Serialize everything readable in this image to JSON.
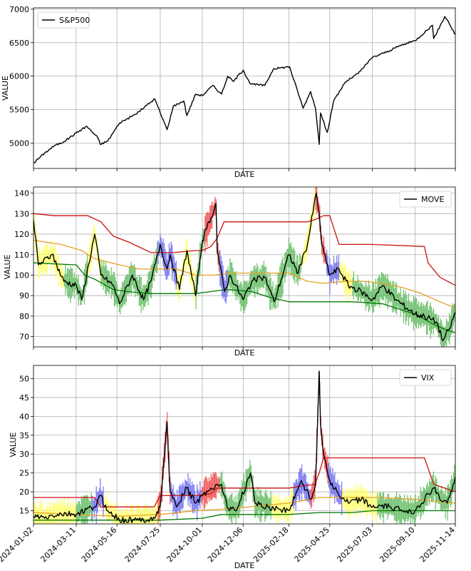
{
  "chart_data": [
    {
      "type": "line",
      "xlabel": "DATE",
      "ylabel": "VALUE",
      "ylim": [
        4620,
        7020
      ],
      "yticks": [
        5000,
        5500,
        6000,
        6500,
        7000
      ],
      "grid": true,
      "legend": {
        "position": "top-left",
        "entries": [
          {
            "label": "S&P500",
            "color": "#000000"
          }
        ]
      },
      "series": [
        {
          "name": "S&P500",
          "color": "#000000",
          "x": [
            "2024-01-02",
            "2024-01-20",
            "2024-02-05",
            "2024-02-20",
            "2024-03-11",
            "2024-03-28",
            "2024-04-15",
            "2024-04-19",
            "2024-05-01",
            "2024-05-20",
            "2024-06-15",
            "2024-07-16",
            "2024-07-25",
            "2024-08-05",
            "2024-08-15",
            "2024-09-01",
            "2024-09-06",
            "2024-09-20",
            "2024-10-01",
            "2024-10-18",
            "2024-11-01",
            "2024-11-11",
            "2024-11-20",
            "2024-12-06",
            "2024-12-18",
            "2025-01-10",
            "2025-01-24",
            "2025-02-19",
            "2025-03-13",
            "2025-03-25",
            "2025-04-02",
            "2025-04-08",
            "2025-04-10",
            "2025-04-21",
            "2025-05-01",
            "2025-05-20",
            "2025-06-10",
            "2025-07-03",
            "2025-07-31",
            "2025-08-15",
            "2025-09-10",
            "2025-10-08",
            "2025-10-10",
            "2025-10-28",
            "2025-11-01",
            "2025-11-14"
          ],
          "values": [
            4700,
            4850,
            4960,
            5020,
            5150,
            5250,
            5080,
            4980,
            5030,
            5300,
            5430,
            5660,
            5450,
            5200,
            5550,
            5630,
            5410,
            5730,
            5710,
            5860,
            5730,
            6000,
            5920,
            6090,
            5880,
            5860,
            6110,
            6140,
            5520,
            5770,
            5520,
            4980,
            5450,
            5160,
            5620,
            5910,
            6040,
            6280,
            6380,
            6450,
            6530,
            6760,
            6560,
            6890,
            6840,
            6620
          ]
        }
      ]
    },
    {
      "type": "line",
      "xlabel": "DATE",
      "ylabel": "VALUE",
      "ylim": [
        65,
        143
      ],
      "yticks": [
        70,
        80,
        90,
        100,
        110,
        120,
        130,
        140
      ],
      "grid": true,
      "legend": {
        "position": "top-right",
        "entries": [
          {
            "label": "MOVE",
            "color": "#000000"
          }
        ]
      },
      "series": [
        {
          "color": "#000000",
          "x": [
            "2024-01-02",
            "2024-01-10",
            "2024-02-01",
            "2024-02-20",
            "2024-03-11",
            "2024-03-20",
            "2024-04-10",
            "2024-04-20",
            "2024-05-10",
            "2024-05-20",
            "2024-06-10",
            "2024-06-28",
            "2024-07-10",
            "2024-07-25",
            "2024-08-05",
            "2024-08-10",
            "2024-08-25",
            "2024-09-06",
            "2024-09-20",
            "2024-10-01",
            "2024-10-15",
            "2024-10-23",
            "2024-10-25",
            "2024-11-06",
            "2024-11-15",
            "2024-12-06",
            "2024-12-20",
            "2025-01-10",
            "2025-01-25",
            "2025-02-18",
            "2025-03-05",
            "2025-03-20",
            "2025-04-03",
            "2025-04-08",
            "2025-04-12",
            "2025-04-25",
            "2025-05-10",
            "2025-05-25",
            "2025-06-15",
            "2025-07-03",
            "2025-07-20",
            "2025-08-10",
            "2025-09-10",
            "2025-09-25",
            "2025-10-15",
            "2025-10-25",
            "2025-11-05",
            "2025-11-14"
          ],
          "values": [
            127,
            105,
            110,
            97,
            95,
            88,
            120,
            100,
            95,
            86,
            100,
            88,
            97,
            115,
            103,
            110,
            93,
            112,
            90,
            117,
            128,
            135,
            112,
            92,
            100,
            88,
            97,
            99,
            87,
            110,
            101,
            115,
            140,
            130,
            115,
            100,
            103,
            95,
            92,
            88,
            95,
            88,
            81,
            80,
            77,
            68,
            74,
            82
          ]
        },
        {
          "color": "#cc1111",
          "x": [
            "2024-01-02",
            "2024-02-05",
            "2024-03-30",
            "2024-04-20",
            "2024-05-10",
            "2024-06-05",
            "2024-07-10",
            "2024-07-25",
            "2024-08-15",
            "2024-09-20",
            "2024-10-01",
            "2024-10-15",
            "2024-10-25",
            "2024-11-05",
            "2025-02-18",
            "2025-03-20",
            "2025-04-01",
            "2025-04-15",
            "2025-04-25",
            "2025-05-10",
            "2025-06-30",
            "2025-09-25",
            "2025-10-01",
            "2025-10-20",
            "2025-11-14"
          ],
          "values": [
            130,
            129,
            129,
            126,
            119,
            116,
            111,
            111,
            111,
            112,
            112,
            114,
            118,
            126,
            126,
            126,
            127,
            129,
            129,
            115,
            115,
            114,
            106,
            99,
            95
          ]
        },
        {
          "color": "#e6a023",
          "x": [
            "2024-01-02",
            "2024-02-15",
            "2024-03-20",
            "2024-04-10",
            "2024-05-20",
            "2024-06-20",
            "2024-07-25",
            "2024-08-20",
            "2024-09-20",
            "2024-10-20",
            "2024-11-15",
            "2025-01-10",
            "2025-02-18",
            "2025-03-20",
            "2025-04-15",
            "2025-05-20",
            "2025-06-20",
            "2025-07-20",
            "2025-08-20",
            "2025-09-20",
            "2025-10-20",
            "2025-11-14"
          ],
          "values": [
            117,
            115,
            112,
            108,
            105,
            103,
            103,
            103,
            100,
            100,
            101,
            101,
            101,
            97,
            96,
            97,
            97,
            96,
            94,
            91,
            87,
            84
          ]
        },
        {
          "color": "#007700",
          "x": [
            "2024-01-02",
            "2024-03-11",
            "2024-03-25",
            "2024-04-10",
            "2024-05-10",
            "2024-06-01",
            "2024-07-10",
            "2024-08-10",
            "2024-09-20",
            "2024-10-15",
            "2024-11-10",
            "2024-12-20",
            "2025-01-20",
            "2025-02-18",
            "2025-04-01",
            "2025-06-01",
            "2025-07-20",
            "2025-09-10",
            "2025-10-10",
            "2025-11-01",
            "2025-11-14"
          ],
          "values": [
            106,
            105,
            100,
            98,
            93,
            92,
            91,
            91,
            91,
            92,
            93,
            92,
            89,
            87,
            87,
            87,
            86,
            81,
            76,
            73,
            72
          ]
        }
      ],
      "regimes": [
        {
          "from": "2024-01-02",
          "to": "2024-02-20",
          "color": "#ffff66"
        },
        {
          "from": "2024-02-20",
          "to": "2024-03-30",
          "color": "#5cb85c"
        },
        {
          "from": "2024-03-30",
          "to": "2024-04-20",
          "color": "#ffff66"
        },
        {
          "from": "2024-04-20",
          "to": "2024-07-20",
          "color": "#5cb85c"
        },
        {
          "from": "2024-07-20",
          "to": "2024-08-20",
          "color": "#6666ee"
        },
        {
          "from": "2024-08-20",
          "to": "2024-09-20",
          "color": "#ffff66"
        },
        {
          "from": "2024-09-20",
          "to": "2024-10-05",
          "color": "#5cb85c"
        },
        {
          "from": "2024-10-05",
          "to": "2024-10-28",
          "color": "#ee4444"
        },
        {
          "from": "2024-10-28",
          "to": "2024-11-10",
          "color": "#6666ee"
        },
        {
          "from": "2024-11-10",
          "to": "2025-03-10",
          "color": "#5cb85c"
        },
        {
          "from": "2025-03-10",
          "to": "2025-04-01",
          "color": "#ffff66"
        },
        {
          "from": "2025-04-01",
          "to": "2025-04-20",
          "color": "#ee4444"
        },
        {
          "from": "2025-04-20",
          "to": "2025-05-10",
          "color": "#6666ee"
        },
        {
          "from": "2025-05-10",
          "to": "2025-06-01",
          "color": "#ffff66"
        },
        {
          "from": "2025-06-01",
          "to": "2025-11-14",
          "color": "#5cb85c"
        }
      ]
    },
    {
      "type": "line",
      "xlabel": "DATE",
      "ylabel": "VALUE",
      "ylim": [
        11.5,
        53.5
      ],
      "yticks": [
        15,
        20,
        25,
        30,
        35,
        40,
        45,
        50
      ],
      "xticks": [
        "2024-01-02",
        "2024-03-11",
        "2024-05-16",
        "2024-07-25",
        "2024-10-01",
        "2024-12-06",
        "2025-02-18",
        "2025-04-25",
        "2025-07-03",
        "2025-09-10",
        "2025-11-14"
      ],
      "grid": true,
      "legend": {
        "position": "top-right",
        "entries": [
          {
            "label": "VIX",
            "color": "#000000"
          }
        ]
      },
      "series": [
        {
          "color": "#000000",
          "x": [
            "2024-01-02",
            "2024-01-20",
            "2024-02-10",
            "2024-03-11",
            "2024-04-10",
            "2024-04-19",
            "2024-05-01",
            "2024-05-20",
            "2024-06-20",
            "2024-07-16",
            "2024-07-25",
            "2024-08-05",
            "2024-08-10",
            "2024-08-20",
            "2024-09-06",
            "2024-09-20",
            "2024-10-01",
            "2024-10-15",
            "2024-11-01",
            "2024-11-10",
            "2024-11-25",
            "2024-12-18",
            "2024-12-25",
            "2025-01-15",
            "2025-02-01",
            "2025-02-18",
            "2025-03-10",
            "2025-03-25",
            "2025-04-02",
            "2025-04-08",
            "2025-04-10",
            "2025-04-15",
            "2025-04-25",
            "2025-05-10",
            "2025-05-25",
            "2025-06-15",
            "2025-07-03",
            "2025-08-01",
            "2025-08-20",
            "2025-09-10",
            "2025-10-10",
            "2025-10-20",
            "2025-11-01",
            "2025-11-14"
          ],
          "values": [
            13.5,
            13,
            14,
            14,
            16,
            19,
            15,
            12.5,
            12.5,
            13,
            16,
            38.5,
            20,
            16,
            21,
            17,
            19,
            21,
            22,
            16,
            15,
            25,
            17,
            16,
            15.5,
            15,
            23,
            18,
            22,
            52,
            38,
            30,
            23,
            19,
            17,
            18,
            16,
            16,
            15,
            15,
            21,
            18,
            17,
            24
          ]
        },
        {
          "color": "#cc1111",
          "x": [
            "2024-01-02",
            "2024-03-11",
            "2024-04-10",
            "2024-04-20",
            "2024-05-16",
            "2024-07-15",
            "2024-07-25",
            "2024-08-20",
            "2024-09-20",
            "2024-10-15",
            "2024-10-25",
            "2025-01-15",
            "2025-02-18",
            "2025-03-10",
            "2025-04-01",
            "2025-04-08",
            "2025-04-15",
            "2025-05-01",
            "2025-09-25",
            "2025-10-10",
            "2025-11-14"
          ],
          "values": [
            18.5,
            18.5,
            18.5,
            16,
            16,
            16,
            19,
            19,
            19,
            19.5,
            21,
            21,
            21,
            21.5,
            22,
            25,
            29,
            29,
            29,
            22,
            20
          ]
        },
        {
          "color": "#e6a023",
          "x": [
            "2024-01-02",
            "2024-03-11",
            "2024-05-16",
            "2024-07-25",
            "2024-09-20",
            "2024-11-15",
            "2025-01-15",
            "2025-02-18",
            "2025-04-08",
            "2025-06-01",
            "2025-07-20",
            "2025-09-10",
            "2025-11-14"
          ],
          "values": [
            14.5,
            14,
            13.5,
            14,
            15,
            15.5,
            16.5,
            17,
            18.5,
            18.5,
            18.5,
            18,
            17
          ]
        },
        {
          "color": "#007700",
          "x": [
            "2024-01-02",
            "2024-03-11",
            "2024-05-16",
            "2024-07-25",
            "2024-10-01",
            "2024-11-01",
            "2025-01-15",
            "2025-02-18",
            "2025-04-08",
            "2025-06-01",
            "2025-07-03",
            "2025-09-10",
            "2025-11-14"
          ],
          "values": [
            12.5,
            12.5,
            12.5,
            12.5,
            13,
            14,
            14,
            14,
            14.5,
            14.5,
            15,
            15,
            15
          ]
        }
      ],
      "regimes": [
        {
          "from": "2024-01-02",
          "to": "2024-03-11",
          "color": "#ffff66"
        },
        {
          "from": "2024-03-11",
          "to": "2024-04-05",
          "color": "#5cb85c"
        },
        {
          "from": "2024-04-05",
          "to": "2024-04-25",
          "color": "#6666ee"
        },
        {
          "from": "2024-04-25",
          "to": "2024-07-20",
          "color": "#ffff66"
        },
        {
          "from": "2024-07-20",
          "to": "2024-08-10",
          "color": "#ee4444"
        },
        {
          "from": "2024-08-10",
          "to": "2024-09-30",
          "color": "#6666ee"
        },
        {
          "from": "2024-09-30",
          "to": "2024-10-28",
          "color": "#ee4444"
        },
        {
          "from": "2024-10-28",
          "to": "2025-01-20",
          "color": "#5cb85c"
        },
        {
          "from": "2025-01-20",
          "to": "2025-02-25",
          "color": "#ffff66"
        },
        {
          "from": "2025-02-25",
          "to": "2025-03-25",
          "color": "#6666ee"
        },
        {
          "from": "2025-03-25",
          "to": "2025-04-22",
          "color": "#ee4444"
        },
        {
          "from": "2025-04-22",
          "to": "2025-05-15",
          "color": "#6666ee"
        },
        {
          "from": "2025-05-15",
          "to": "2025-07-10",
          "color": "#ffff66"
        },
        {
          "from": "2025-07-10",
          "to": "2025-11-14",
          "color": "#5cb85c"
        }
      ]
    }
  ]
}
